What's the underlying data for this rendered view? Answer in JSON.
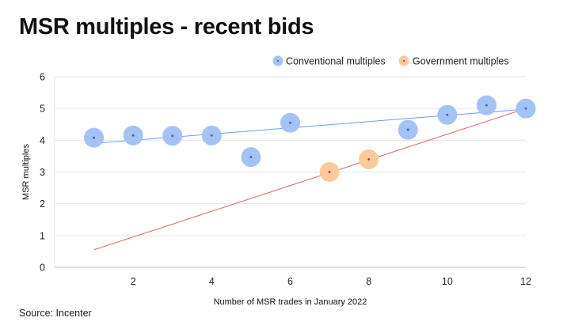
{
  "title": "MSR multiples - recent bids",
  "source": "Source: Incenter",
  "chart_data": {
    "type": "scatter",
    "title": "MSR multiples - recent bids",
    "xlabel": "Number of MSR trades in January 2022",
    "ylabel": "MSR multiples",
    "xlim": [
      0,
      12
    ],
    "ylim": [
      0,
      6
    ],
    "x_ticks": [
      2,
      4,
      6,
      8,
      10,
      12
    ],
    "y_ticks": [
      0,
      1,
      2,
      3,
      4,
      5,
      6
    ],
    "grid": "horizontal",
    "legend_position": "top-right",
    "series": [
      {
        "name": "Conventional multiples",
        "color": "#a4c2f4",
        "dot_color": "#3c5ec8",
        "trendline_color": "#6d9eeb",
        "trendline": [
          [
            1,
            3.9
          ],
          [
            12,
            4.98
          ]
        ],
        "points": [
          [
            1,
            4.08
          ],
          [
            2,
            4.15
          ],
          [
            3,
            4.14
          ],
          [
            4,
            4.15
          ],
          [
            5,
            3.47
          ],
          [
            6,
            4.55
          ],
          [
            9,
            4.33
          ],
          [
            10,
            4.8
          ],
          [
            11,
            5.1
          ],
          [
            12,
            5.0
          ]
        ]
      },
      {
        "name": "Government multiples",
        "color": "#f9cb9c",
        "dot_color": "#cc3333",
        "trendline_color": "#e06666",
        "trendline": [
          [
            1,
            0.55
          ],
          [
            12,
            5.0
          ]
        ],
        "points": [
          [
            7,
            3.0
          ],
          [
            8,
            3.4
          ]
        ]
      }
    ]
  }
}
